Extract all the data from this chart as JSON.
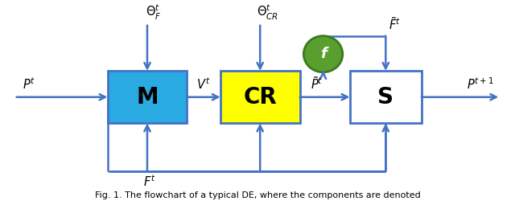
{
  "arrow_color": "#4472C4",
  "box_M_color": "#29ABE2",
  "box_CR_color": "#FFFF00",
  "box_S_color": "#FFFFFF",
  "circle_f_color": "#5A9E2F",
  "circle_f_edge": "#3A7A1F",
  "box_edge_color": "#4472C4",
  "box_M_label": "M",
  "box_CR_label": "CR",
  "box_S_label": "S",
  "circle_f_label": "f",
  "caption": "Fig. 1. The flowchart of a typical DE, where the components are denoted",
  "background": "#FFFFFF"
}
